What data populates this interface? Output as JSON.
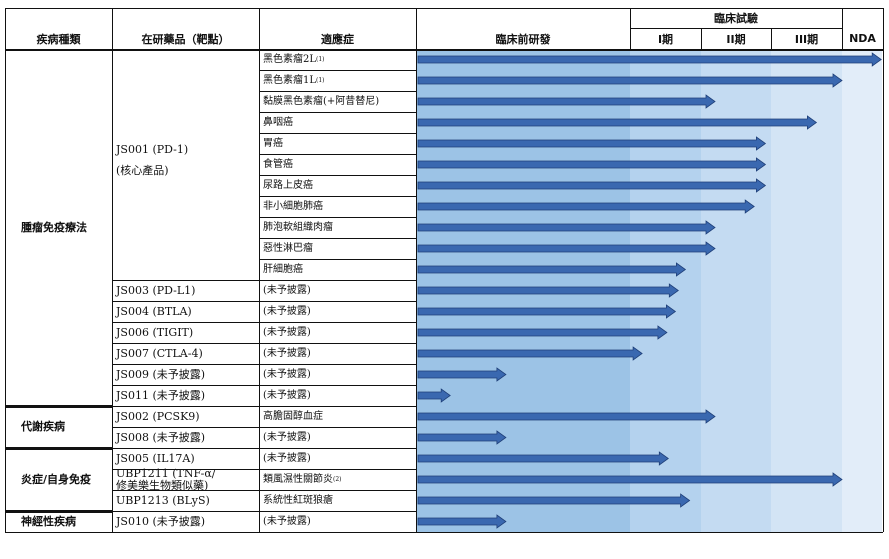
{
  "chart_data": {
    "type": "pipeline",
    "headers": {
      "area": "疾病種類",
      "drug": "在研藥品（靶點）",
      "indication": "適應症",
      "preclinical": "臨床前研發",
      "clinical_trials": "臨床試驗",
      "phase1": "I期",
      "phase2": "II期",
      "phase3": "III期",
      "nda": "NDA"
    },
    "stages": [
      "臨床前研發",
      "I期",
      "II期",
      "III期",
      "NDA"
    ],
    "progress_unit": "stage (0 = start of preclinical, 5 = end of NDA)",
    "areas": [
      {
        "name": "腫瘤免疫療法",
        "rows": [
          0,
          16
        ]
      },
      {
        "name": "代謝疾病",
        "rows": [
          17,
          18
        ]
      },
      {
        "name": "炎症/自身免疫",
        "rows": [
          19,
          21
        ]
      },
      {
        "name": "神經性疾病",
        "rows": [
          22,
          22
        ]
      }
    ],
    "drugs": [
      {
        "lines": [
          "JS001 (PD-1)",
          "(核心產品)"
        ],
        "rows": [
          0,
          10
        ]
      },
      {
        "lines": [
          "JS003 (PD-L1)"
        ],
        "rows": [
          11,
          11
        ]
      },
      {
        "lines": [
          "JS004 (BTLA)"
        ],
        "rows": [
          12,
          12
        ]
      },
      {
        "lines": [
          "JS006 (TIGIT)"
        ],
        "rows": [
          13,
          13
        ]
      },
      {
        "lines": [
          "JS007 (CTLA-4)"
        ],
        "rows": [
          14,
          14
        ]
      },
      {
        "lines": [
          "JS009 (未予披露)"
        ],
        "rows": [
          15,
          15
        ]
      },
      {
        "lines": [
          "JS011 (未予披露)"
        ],
        "rows": [
          16,
          16
        ]
      },
      {
        "lines": [
          "JS002 (PCSK9)"
        ],
        "rows": [
          17,
          17
        ]
      },
      {
        "lines": [
          "JS008 (未予披露)"
        ],
        "rows": [
          18,
          18
        ]
      },
      {
        "lines": [
          "JS005 (IL17A)"
        ],
        "rows": [
          19,
          19
        ]
      },
      {
        "lines": [
          "UBP1211 (TNF-α/",
          "修美樂生物類似藥)"
        ],
        "rows": [
          20,
          20
        ]
      },
      {
        "lines": [
          "UBP1213 (BLyS)"
        ],
        "rows": [
          21,
          21
        ]
      },
      {
        "lines": [
          "JS010 (未予披露)"
        ],
        "rows": [
          22,
          22
        ]
      }
    ],
    "rows": [
      {
        "indication": "黑色素瘤2L",
        "note": "(1)",
        "progress": 4.98
      },
      {
        "indication": "黑色素瘤1L",
        "note": "(1)",
        "progress": 4.0
      },
      {
        "indication": "黏膜黑色素瘤(+阿昔替尼)",
        "note": "",
        "progress": 2.2
      },
      {
        "indication": "鼻咽癌",
        "note": "",
        "progress": 3.64
      },
      {
        "indication": "胃癌",
        "note": "",
        "progress": 2.92
      },
      {
        "indication": "食管癌",
        "note": "",
        "progress": 2.92
      },
      {
        "indication": "尿路上皮癌",
        "note": "",
        "progress": 2.92
      },
      {
        "indication": "非小細胞肺癌",
        "note": "",
        "progress": 2.76
      },
      {
        "indication": "肺泡軟組織肉瘤",
        "note": "",
        "progress": 2.2
      },
      {
        "indication": "惡性淋巴瘤",
        "note": "",
        "progress": 2.2
      },
      {
        "indication": "肝細胞癌",
        "note": "",
        "progress": 1.78
      },
      {
        "indication": "(未予披露)",
        "note": "",
        "progress": 1.68
      },
      {
        "indication": "(未予披露)",
        "note": "",
        "progress": 1.64
      },
      {
        "indication": "(未予披露)",
        "note": "",
        "progress": 1.52
      },
      {
        "indication": "(未予披露)",
        "note": "",
        "progress": 1.17
      },
      {
        "indication": "(未予披露)",
        "note": "",
        "progress": 0.42
      },
      {
        "indication": "(未予披露)",
        "note": "",
        "progress": 0.16
      },
      {
        "indication": "高膽固醇血症",
        "note": "",
        "progress": 2.2
      },
      {
        "indication": "(未予披露)",
        "note": "",
        "progress": 0.42
      },
      {
        "indication": "(未予披露)",
        "note": "",
        "progress": 1.54
      },
      {
        "indication": "類風濕性關節炎",
        "note": "(2)",
        "progress": 4.0
      },
      {
        "indication": "系統性紅斑狼瘡",
        "note": "",
        "progress": 1.84
      },
      {
        "indication": "(未予披露)",
        "note": "",
        "progress": 0.42
      }
    ],
    "colors": {
      "stage_bg": [
        "#9cc3e6",
        "#b4d2ee",
        "#c4dbf2",
        "#d3e4f5",
        "#e2edf9"
      ],
      "arrow": "#3a68b0",
      "arrow_edge": "#1f3f78",
      "grid": "#111111"
    }
  }
}
